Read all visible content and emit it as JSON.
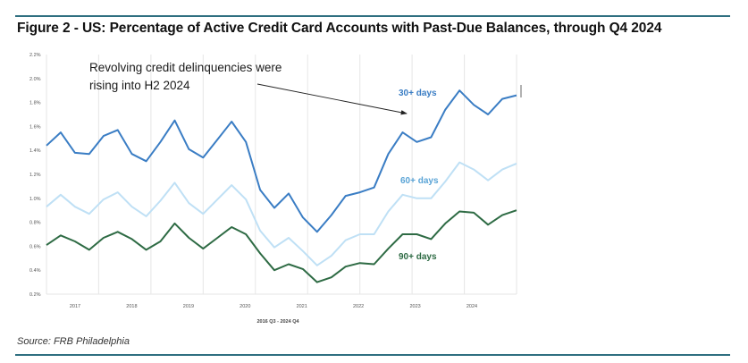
{
  "title": "Figure 2 - US: Percentage of Active Credit Card Accounts with Past-Due Balances, through Q4 2024",
  "source": "Source: FRB Philadelphia",
  "colors": {
    "rule": "#2f6f80",
    "s30": "#3a7dc4",
    "s60": "#bfe0f5",
    "s90": "#2e6b44"
  },
  "chart_data": {
    "type": "line",
    "xlabel": "2016 Q3 - 2024 Q4",
    "ylabel": "",
    "ylim": [
      0.2,
      2.2
    ],
    "y_ticks": [
      "0.2%",
      "0.4%",
      "0.6%",
      "0.8%",
      "1.0%",
      "1.2%",
      "1.4%",
      "1.6%",
      "1.8%",
      "2.0%",
      "2.2%"
    ],
    "x_ticks": [
      "2017",
      "2018",
      "2019",
      "2020",
      "2021",
      "2022",
      "2023",
      "2024"
    ],
    "grid": "vertical",
    "annotation": {
      "line1": "Revolving credit delinquencies were",
      "line2": "rising into H2 2024"
    },
    "series": [
      {
        "name": "30+ days",
        "values": [
          1.44,
          1.55,
          1.38,
          1.37,
          1.52,
          1.57,
          1.37,
          1.31,
          1.47,
          1.65,
          1.41,
          1.34,
          1.49,
          1.64,
          1.47,
          1.07,
          0.92,
          1.04,
          0.84,
          0.72,
          0.86,
          1.02,
          1.05,
          1.09,
          1.37,
          1.55,
          1.47,
          1.51,
          1.74,
          1.9,
          1.78,
          1.7,
          1.83,
          1.86
        ]
      },
      {
        "name": "60+ days",
        "values": [
          0.93,
          1.03,
          0.93,
          0.87,
          0.99,
          1.05,
          0.93,
          0.85,
          0.98,
          1.13,
          0.96,
          0.87,
          0.99,
          1.11,
          0.99,
          0.73,
          0.59,
          0.67,
          0.56,
          0.44,
          0.52,
          0.65,
          0.7,
          0.7,
          0.89,
          1.03,
          1.0,
          1.0,
          1.14,
          1.3,
          1.24,
          1.15,
          1.24,
          1.29
        ]
      },
      {
        "name": "90+ days",
        "values": [
          0.61,
          0.69,
          0.64,
          0.57,
          0.67,
          0.72,
          0.66,
          0.57,
          0.64,
          0.79,
          0.67,
          0.58,
          0.67,
          0.76,
          0.7,
          0.54,
          0.4,
          0.45,
          0.41,
          0.3,
          0.34,
          0.43,
          0.46,
          0.45,
          0.58,
          0.7,
          0.7,
          0.66,
          0.79,
          0.89,
          0.88,
          0.78,
          0.86,
          0.9
        ]
      }
    ]
  }
}
